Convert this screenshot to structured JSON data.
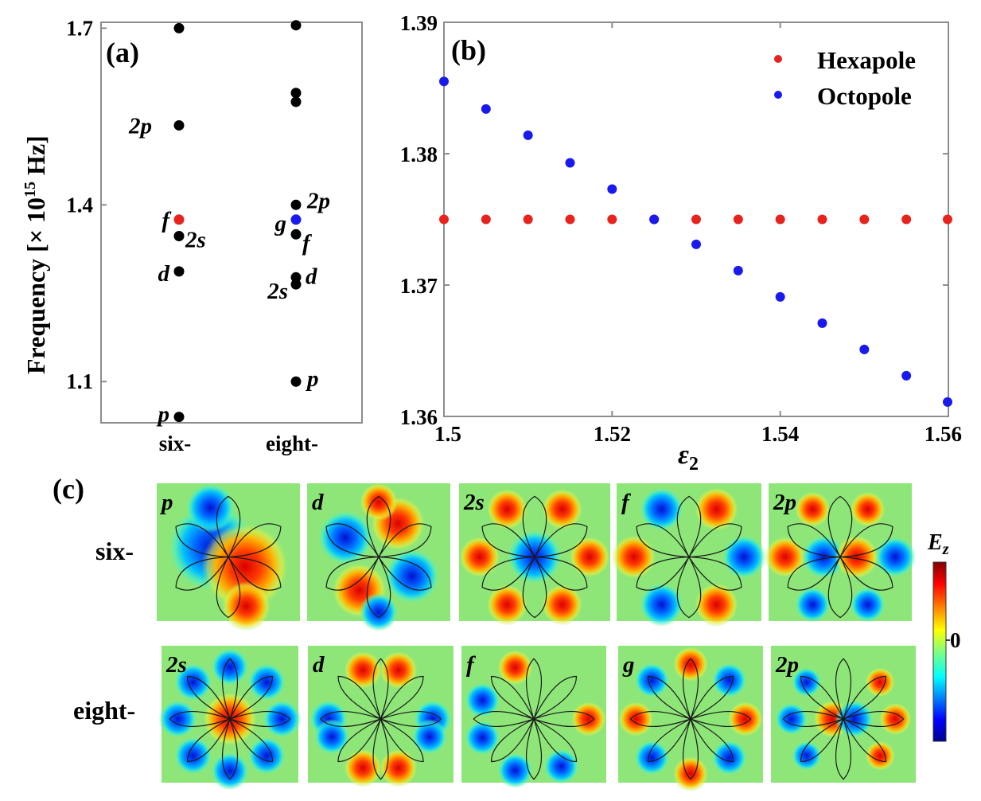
{
  "figure": {
    "panel_labels": [
      "(a)",
      "(b)",
      "(c)"
    ]
  },
  "chart_data": [
    {
      "id": "a",
      "type": "scatter",
      "ylabel_main": "Frequency [× 10",
      "ylabel_exp": "15",
      "ylabel_unit": " Hz]",
      "ylim": [
        1.03,
        1.71
      ],
      "yticks": [
        "1.1",
        "1.4",
        "1.7"
      ],
      "categories": [
        "six-",
        "eight-"
      ],
      "points": [
        {
          "cat": "six-",
          "y": 1.7,
          "label": "",
          "color": "#000000"
        },
        {
          "cat": "six-",
          "y": 1.535,
          "label": "2p",
          "color": "#000000"
        },
        {
          "cat": "six-",
          "y": 1.375,
          "label": "f",
          "color": "#e8231d"
        },
        {
          "cat": "six-",
          "y": 1.347,
          "label": "2s",
          "color": "#000000"
        },
        {
          "cat": "six-",
          "y": 1.287,
          "label": "d",
          "color": "#000000"
        },
        {
          "cat": "six-",
          "y": 1.04,
          "label": "p",
          "color": "#000000"
        },
        {
          "cat": "eight-",
          "y": 1.705,
          "label": "",
          "color": "#000000"
        },
        {
          "cat": "eight-",
          "y": 1.59,
          "label": "",
          "color": "#000000"
        },
        {
          "cat": "eight-",
          "y": 1.575,
          "label": "",
          "color": "#000000"
        },
        {
          "cat": "eight-",
          "y": 1.4,
          "label": "2p",
          "color": "#000000"
        },
        {
          "cat": "eight-",
          "y": 1.375,
          "label": "g",
          "color": "#1a1aee"
        },
        {
          "cat": "eight-",
          "y": 1.35,
          "label": "f",
          "color": "#000000"
        },
        {
          "cat": "eight-",
          "y": 1.277,
          "label": "d",
          "color": "#000000"
        },
        {
          "cat": "eight-",
          "y": 1.265,
          "label": "2s",
          "color": "#000000"
        },
        {
          "cat": "eight-",
          "y": 1.1,
          "label": "p",
          "color": "#000000"
        }
      ]
    },
    {
      "id": "b",
      "type": "scatter",
      "xlabel": "ε",
      "xlabel_sub": "2",
      "xlim": [
        1.5,
        1.56
      ],
      "ylim": [
        1.36,
        1.39
      ],
      "xticks": [
        "1.5",
        "1.52",
        "1.54",
        "1.56"
      ],
      "yticks": [
        "1.36",
        "1.37",
        "1.38",
        "1.39"
      ],
      "legend_position": "top-right",
      "series": [
        {
          "name": "Hexapole",
          "color": "#e8231d",
          "x": [
            1.5,
            1.505,
            1.51,
            1.515,
            1.52,
            1.525,
            1.53,
            1.535,
            1.54,
            1.545,
            1.55,
            1.555,
            1.56
          ],
          "y": [
            1.375,
            1.375,
            1.375,
            1.375,
            1.375,
            1.375,
            1.375,
            1.375,
            1.375,
            1.375,
            1.375,
            1.375,
            1.375
          ]
        },
        {
          "name": "Octopole",
          "color": "#1a1aee",
          "x": [
            1.5,
            1.505,
            1.51,
            1.515,
            1.52,
            1.525,
            1.53,
            1.535,
            1.54,
            1.545,
            1.55,
            1.555,
            1.56
          ],
          "y": [
            1.3855,
            1.3834,
            1.3814,
            1.3793,
            1.3773,
            1.375,
            1.3731,
            1.3711,
            1.3691,
            1.3671,
            1.3651,
            1.3631,
            1.3611
          ]
        }
      ]
    }
  ],
  "field_maps": {
    "colorbar_label": "E",
    "colorbar_sub": "z",
    "colorbar_tick": "0",
    "rows": [
      {
        "label": "six-",
        "petals": 6,
        "modes": [
          "p",
          "d",
          "2s",
          "f",
          "2p"
        ]
      },
      {
        "label": "eight-",
        "petals": 8,
        "modes": [
          "2s",
          "d",
          "f",
          "g",
          "2p"
        ]
      }
    ]
  }
}
